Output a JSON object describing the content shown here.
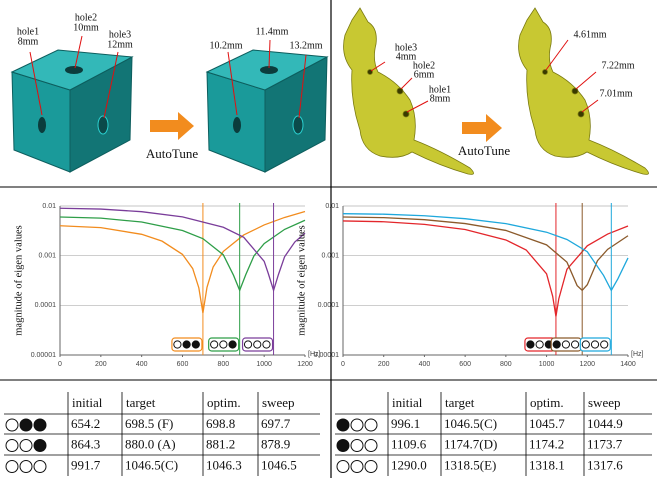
{
  "figures": {
    "cube_before": [
      "hole1",
      "8mm",
      "hole2",
      "10mm",
      "hole3",
      "12mm"
    ],
    "cube_after": [
      "10.2mm",
      "11.4mm",
      "13.2mm"
    ],
    "cat_before": [
      "hole3",
      "4mm",
      "hole2",
      "6mm",
      "hole1",
      "8mm"
    ],
    "cat_after": [
      "4.61mm",
      "7.22mm",
      "7.01mm"
    ],
    "arrow_label": "AutoTune"
  },
  "chart_data": [
    {
      "type": "line",
      "ylabel": "magnitude of eigen values",
      "xlabel": "[Hz]",
      "log_y": true,
      "grid": true,
      "xlim": [
        0,
        1200
      ],
      "xticks": [
        0,
        200,
        400,
        600,
        800,
        1000,
        1200
      ],
      "ylim": [
        1e-05,
        0.01
      ],
      "yticks": [
        1e-05,
        0.0001,
        0.001,
        0.01
      ],
      "series": [
        {
          "color": "#f28c1e",
          "x": [
            0,
            200,
            400,
            500,
            600,
            650,
            680,
            700,
            720,
            750,
            800,
            900,
            1000,
            1100,
            1200
          ],
          "values": [
            0.004,
            0.00367,
            0.00269,
            0.00196,
            0.00106,
            0.00055,
            0.000225,
            7e-05,
            0.000231,
            0.00059,
            0.00122,
            0.00261,
            0.00416,
            0.00588,
            0.00776
          ]
        },
        {
          "color": "#2e9e48",
          "x": [
            0,
            200,
            400,
            600,
            700,
            800,
            850,
            880,
            910,
            950,
            1000,
            1100,
            1200
          ],
          "values": [
            0.006,
            0.00569,
            0.00476,
            0.00321,
            0.0022,
            0.00104,
            0.000402,
            0.0002,
            0.000416,
            0.00099,
            0.00175,
            0.00338,
            0.00516
          ]
        },
        {
          "color": "#7a3d9a",
          "x": [
            0,
            200,
            400,
            600,
            800,
            900,
            1000,
            1020,
            1046,
            1070,
            1100,
            1150,
            1200
          ],
          "values": [
            0.009,
            0.00867,
            0.00768,
            0.00604,
            0.00373,
            0.00234,
            0.00077,
            0.00044,
            0.0002,
            0.000418,
            0.00095,
            0.00188,
            0.00284
          ]
        }
      ]
    },
    {
      "type": "line",
      "ylabel": "magnitude of eigen values",
      "xlabel": "[Hz]",
      "log_y": true,
      "grid": true,
      "xlim": [
        0,
        1400
      ],
      "xticks": [
        0,
        200,
        400,
        600,
        800,
        1000,
        1200,
        1400
      ],
      "ylim": [
        1e-05,
        0.01
      ],
      "yticks": [
        1e-05,
        0.0001,
        0.001,
        0.01
      ],
      "series": [
        {
          "color": "#e3262b",
          "x": [
            0,
            200,
            400,
            600,
            800,
            900,
            1000,
            1030,
            1046,
            1060,
            1100,
            1200,
            1300,
            1400
          ],
          "values": [
            0.005,
            0.00482,
            0.00427,
            0.00336,
            0.00207,
            0.0013,
            0.00043,
            0.000152,
            6e-05,
            0.000135,
            0.00053,
            0.00158,
            0.00272,
            0.00396
          ]
        },
        {
          "color": "#8b5a2b",
          "x": [
            0,
            200,
            400,
            600,
            800,
            1000,
            1100,
            1150,
            1175,
            1200,
            1250,
            1300,
            1400
          ],
          "values": [
            0.006,
            0.00583,
            0.0053,
            0.00443,
            0.00322,
            0.00165,
            0.00074,
            0.00025,
            0.0002,
            0.00026,
            0.00079,
            0.00134,
            0.00252
          ]
        },
        {
          "color": "#1fa8dc",
          "x": [
            0,
            200,
            400,
            600,
            800,
            1000,
            1100,
            1200,
            1280,
            1318,
            1350,
            1400
          ],
          "values": [
            0.007,
            0.00684,
            0.00636,
            0.00555,
            0.00442,
            0.00297,
            0.00212,
            0.0012,
            0.0004,
            0.0002,
            0.00034,
            0.0009
          ]
        }
      ]
    }
  ],
  "tables": [
    {
      "header": [
        "initial",
        "target",
        "optim.",
        "sweep"
      ],
      "rows": [
        [
          "654.2",
          "698.5 (F)",
          "698.8",
          "697.7"
        ],
        [
          "864.3",
          "880.0  (A)",
          "881.2",
          "878.9"
        ],
        [
          "991.7",
          "1046.5(C)",
          "1046.3",
          "1046.5"
        ]
      ]
    },
    {
      "header": [
        "initial",
        "target",
        "optim.",
        "sweep"
      ],
      "rows": [
        [
          "996.1",
          "1046.5(C)",
          "1045.7",
          "1044.9"
        ],
        [
          "1109.6",
          "1174.7(D)",
          "1174.2",
          "1173.7"
        ],
        [
          "1290.0",
          "1318.5(E)",
          "1318.1",
          "1317.6"
        ]
      ]
    }
  ]
}
